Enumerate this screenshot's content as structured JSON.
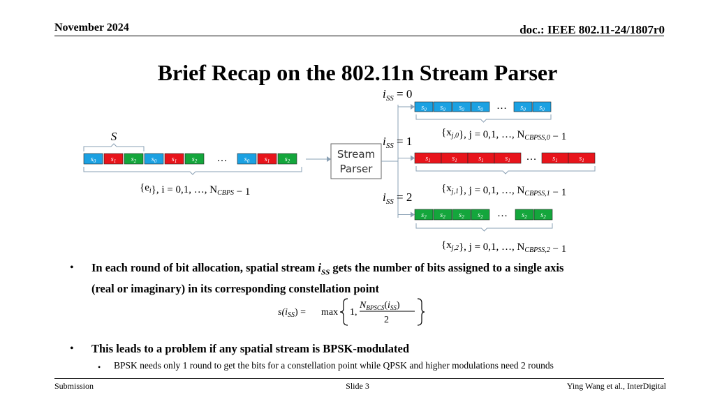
{
  "header": {
    "date": "November 2024",
    "doc": "doc.: IEEE 802.11-24/1807r0"
  },
  "title": "Brief Recap on the 802.11n Stream Parser",
  "diagram": {
    "colors": {
      "blue": "#1ba1e2",
      "red": "#e8141b",
      "green": "#14a63c"
    },
    "input_brace_label": "S",
    "input_symbols": [
      "s0",
      "s1",
      "s2",
      "s0",
      "s1",
      "s2",
      "s0",
      "s1",
      "s2"
    ],
    "input_caption": "{e_i}, i = 0,1, …, N_CBPS − 1",
    "parser_label_line1": "Stream",
    "parser_label_line2": "Parser",
    "ellipsis": "…",
    "streams": [
      {
        "label": "i_SS = 0",
        "symbol": "s0",
        "caption": "{x_j,0}, j = 0,1, …, N_CBPSS,0 − 1"
      },
      {
        "label": "i_SS = 1",
        "symbol": "s1",
        "caption": "{x_j,1}, j = 0,1, …, N_CBPSS,1 − 1"
      },
      {
        "label": "i_SS = 2",
        "symbol": "s2",
        "caption": "{x_j,2}, j = 0,1, …, N_CBPSS,2 − 1"
      }
    ]
  },
  "bullets": {
    "b1_pre": "In each round of bit allocation, spatial stream ",
    "b1_var": "i",
    "b1_sub": "SS",
    "b1_post": " gets the number of bits assigned to a single axis",
    "b1_line2": "(real or imaginary) in its corresponding constellation point",
    "formula": {
      "lhs": "s(i",
      "lhs_sub": "SS",
      "lhs_end": ") =",
      "max": "max",
      "one": "1,",
      "num": "N",
      "num_sub": "BPSCS",
      "num_arg": "(i",
      "num_arg_sub": "SS",
      "num_end": ")",
      "den": "2"
    },
    "b2": "This leads to a problem if any spatial stream is BPSK-modulated",
    "b2_sub": "BPSK needs only 1 round to get the bits for a constellation point while QPSK and higher modulations need 2 rounds"
  },
  "footer": {
    "left": "Submission",
    "center": "Slide 3",
    "right": "Ying Wang et al., InterDigital"
  }
}
